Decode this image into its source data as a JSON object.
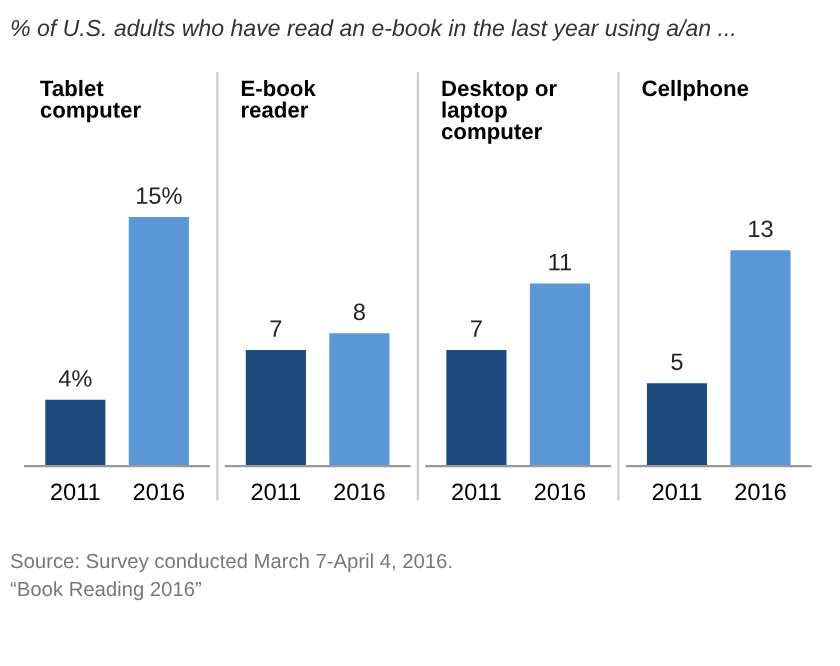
{
  "chart_data": [
    {
      "type": "other",
      "title": "% of U.S. adults who have read an e-book in the last year using a/an ...",
      "annotations": [
        "Source: Survey conducted March 7-April 4, 2016.",
        "“Book Reading 2016”"
      ]
    },
    {
      "type": "bar",
      "title": "Tablet\ncomputer",
      "categories": [
        "2011",
        "2016"
      ],
      "values": [
        4,
        15
      ],
      "colors": [
        "#1f4a7d",
        "#5b97d6"
      ],
      "value_labels": [
        "4%",
        "15%"
      ]
    },
    {
      "type": "bar",
      "title": "E-book\nreader",
      "categories": [
        "2011",
        "2016"
      ],
      "values": [
        7,
        8
      ],
      "colors": [
        "#1f4a7d",
        "#5b97d6"
      ],
      "data_labels": true
    },
    {
      "type": "bar",
      "title": "Desktop or\nlaptop\ncomputer",
      "categories": [
        "2011",
        "2016"
      ],
      "values": [
        7,
        11
      ],
      "colors": [
        "#1f4a7d",
        "#5b97d6"
      ],
      "data_labels": true
    },
    {
      "type": "bar",
      "title": "Cellphone",
      "categories": [
        "2011",
        "2016"
      ],
      "values": [
        5,
        13
      ],
      "colors": [
        "#1f4a7d",
        "#5b97d6"
      ],
      "data_labels": true
    }
  ]
}
